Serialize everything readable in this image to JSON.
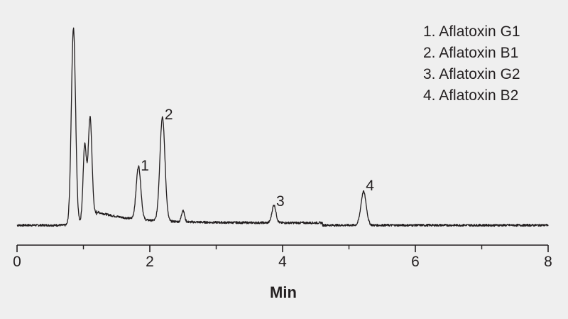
{
  "chart_data": {
    "type": "line",
    "title": "",
    "xlabel": "Min",
    "ylabel": "",
    "xlim": [
      0,
      8
    ],
    "x_ticks": [
      0,
      2,
      4,
      6,
      8
    ],
    "x_minor_ticks": [
      1,
      3,
      5,
      7
    ],
    "ylim": [
      0,
      100
    ],
    "y_axis_shown": false,
    "grid": false,
    "legend_position": "top-right",
    "legend": [
      "1. Aflatoxin G1",
      "2. Aflatoxin B1",
      "3. Aflatoxin G2",
      "4. Aflatoxin B2"
    ],
    "baseline": 0,
    "peaks": [
      {
        "label": "",
        "rt": 0.85,
        "height": 100
      },
      {
        "label": "",
        "rt": 1.02,
        "height": 37
      },
      {
        "label": "",
        "rt": 1.1,
        "height": 49
      },
      {
        "label": "1",
        "rt": 1.83,
        "height": 27
      },
      {
        "label": "2",
        "rt": 2.19,
        "height": 53
      },
      {
        "label": "",
        "rt": 2.5,
        "height": 6
      },
      {
        "label": "3",
        "rt": 3.87,
        "height": 9
      },
      {
        "label": "4",
        "rt": 5.22,
        "height": 17
      }
    ],
    "colors": {
      "trace": "#231f20",
      "axis": "#231f20",
      "background": "#efefef"
    }
  }
}
